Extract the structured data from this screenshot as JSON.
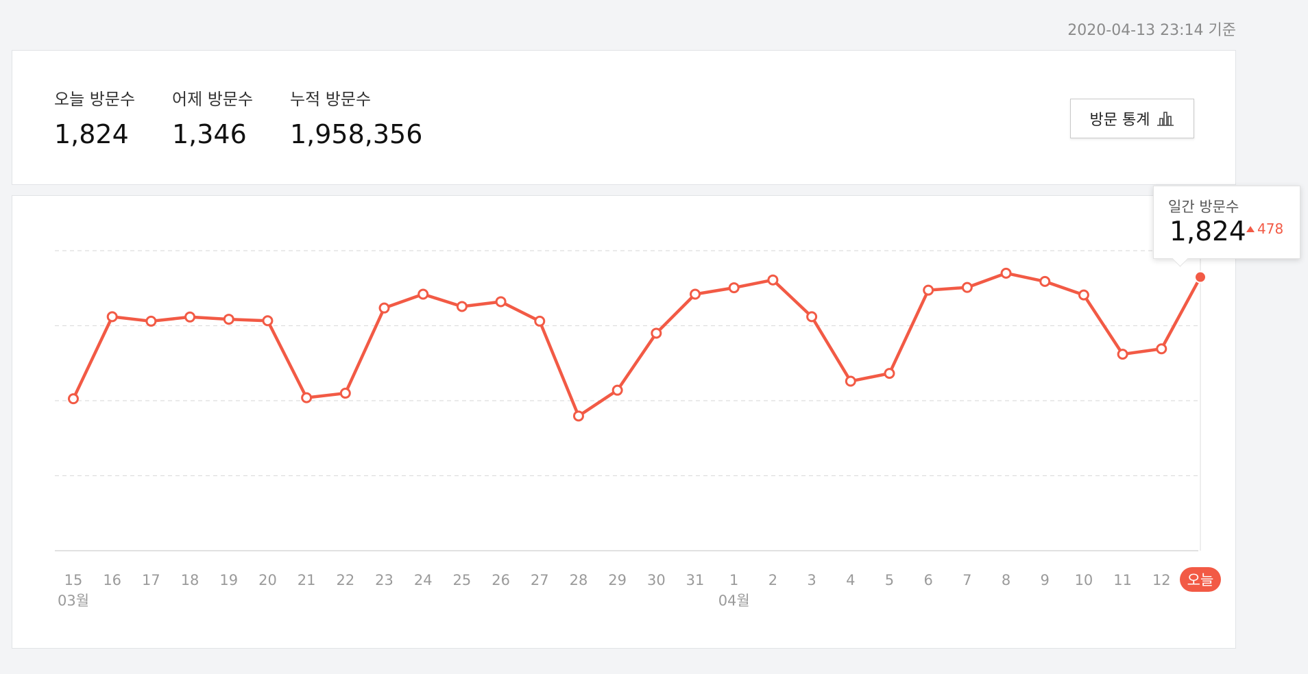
{
  "timestamp": "2020-04-13 23:14 기준",
  "stats": {
    "today_label": "오늘 방문수",
    "today_value": "1,824",
    "yesterday_label": "어제 방문수",
    "yesterday_value": "1,346",
    "total_label": "누적 방문수",
    "total_value": "1,958,356",
    "button_label": "방문 통계",
    "button_icon": "bar-chart-icon"
  },
  "tooltip": {
    "label": "일간 방문수",
    "value": "1,824",
    "change": "478",
    "change_icon": "triangle-up-icon"
  },
  "colors": {
    "accent": "#f25a45",
    "grid": "#dddddd",
    "tick": "#9a9a9a",
    "background": "#f3f4f6",
    "card": "#ffffff"
  },
  "chart_data": {
    "type": "line",
    "x": [
      "15",
      "16",
      "17",
      "18",
      "19",
      "20",
      "21",
      "22",
      "23",
      "24",
      "25",
      "26",
      "27",
      "28",
      "29",
      "30",
      "31",
      "1",
      "2",
      "3",
      "4",
      "5",
      "6",
      "7",
      "8",
      "9",
      "10",
      "11",
      "12",
      "오늘"
    ],
    "values": [
      1013,
      1560,
      1530,
      1558,
      1543,
      1533,
      1020,
      1050,
      1618,
      1710,
      1628,
      1660,
      1530,
      898,
      1070,
      1450,
      1710,
      1753,
      1805,
      1560,
      1130,
      1182,
      1737,
      1755,
      1850,
      1795,
      1705,
      1310,
      1346,
      1824
    ],
    "month_labels": [
      {
        "index": 0,
        "label": "03월"
      },
      {
        "index": 17,
        "label": "04월"
      }
    ],
    "highlight_index": 29,
    "highlight_badge": true,
    "ylim": [
      0,
      2000
    ],
    "gridlines": [
      500,
      1000,
      1500,
      2000
    ],
    "grid": true,
    "legend": "none"
  }
}
